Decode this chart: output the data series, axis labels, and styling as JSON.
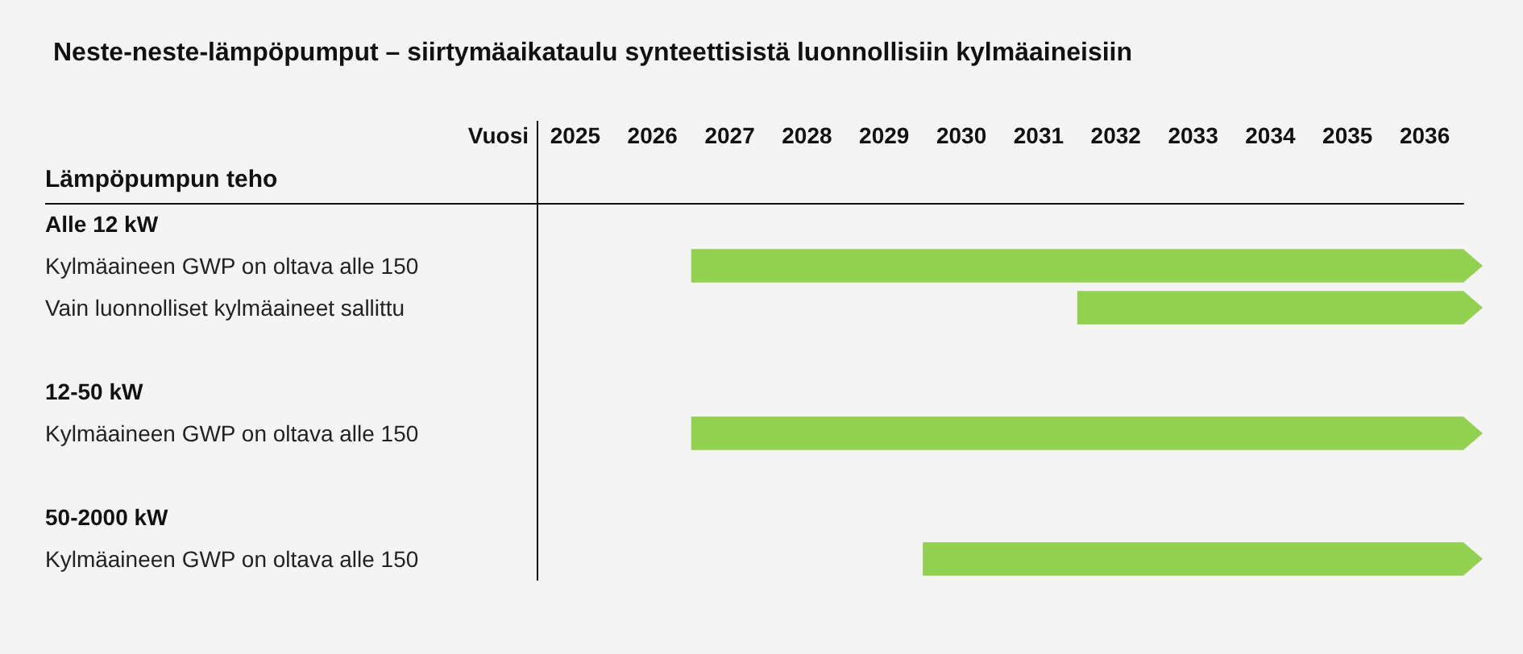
{
  "chart_data": {
    "type": "bar",
    "orientation": "horizontal",
    "title": "Neste-neste-lämpöpumput – siirtymäaikataulu synteettisistä luonnollisiin kylmäaineisiin",
    "xlabel": "Vuosi",
    "ylabel": "Lämpöpumpun teho",
    "categories": [
      "Alle 12 kW",
      "Kylmäaineen GWP on oltava alle 150",
      "Vain luonnolliset kylmäaineet sallittu",
      null,
      "12-50 kW",
      "Kylmäaineen GWP on oltava alle 150",
      null,
      "50-2000 kW",
      "Kylmäaineen GWP on oltava alle 150"
    ],
    "base": [
      null,
      2027,
      2032,
      null,
      null,
      2027,
      null,
      null,
      2030
    ],
    "values": [
      null,
      10,
      5,
      null,
      null,
      10,
      null,
      null,
      7
    ],
    "color": "#92d050",
    "xlim": [
      2025,
      2037
    ],
    "xticks": [
      {
        "value": 2025.5,
        "label": "2025"
      },
      {
        "value": 2026.5,
        "label": "2026"
      },
      {
        "value": 2027.5,
        "label": "2027"
      },
      {
        "value": 2028.5,
        "label": "2028"
      },
      {
        "value": 2029.5,
        "label": "2029"
      },
      {
        "value": 2030.5,
        "label": "2030"
      },
      {
        "value": 2031.5,
        "label": "2031"
      },
      {
        "value": 2032.5,
        "label": "2032"
      },
      {
        "value": 2033.5,
        "label": "2033"
      },
      {
        "value": 2034.5,
        "label": "2034"
      },
      {
        "value": 2035.5,
        "label": "2035"
      },
      {
        "value": 2036.5,
        "label": "2036"
      }
    ],
    "grid": false
  }
}
